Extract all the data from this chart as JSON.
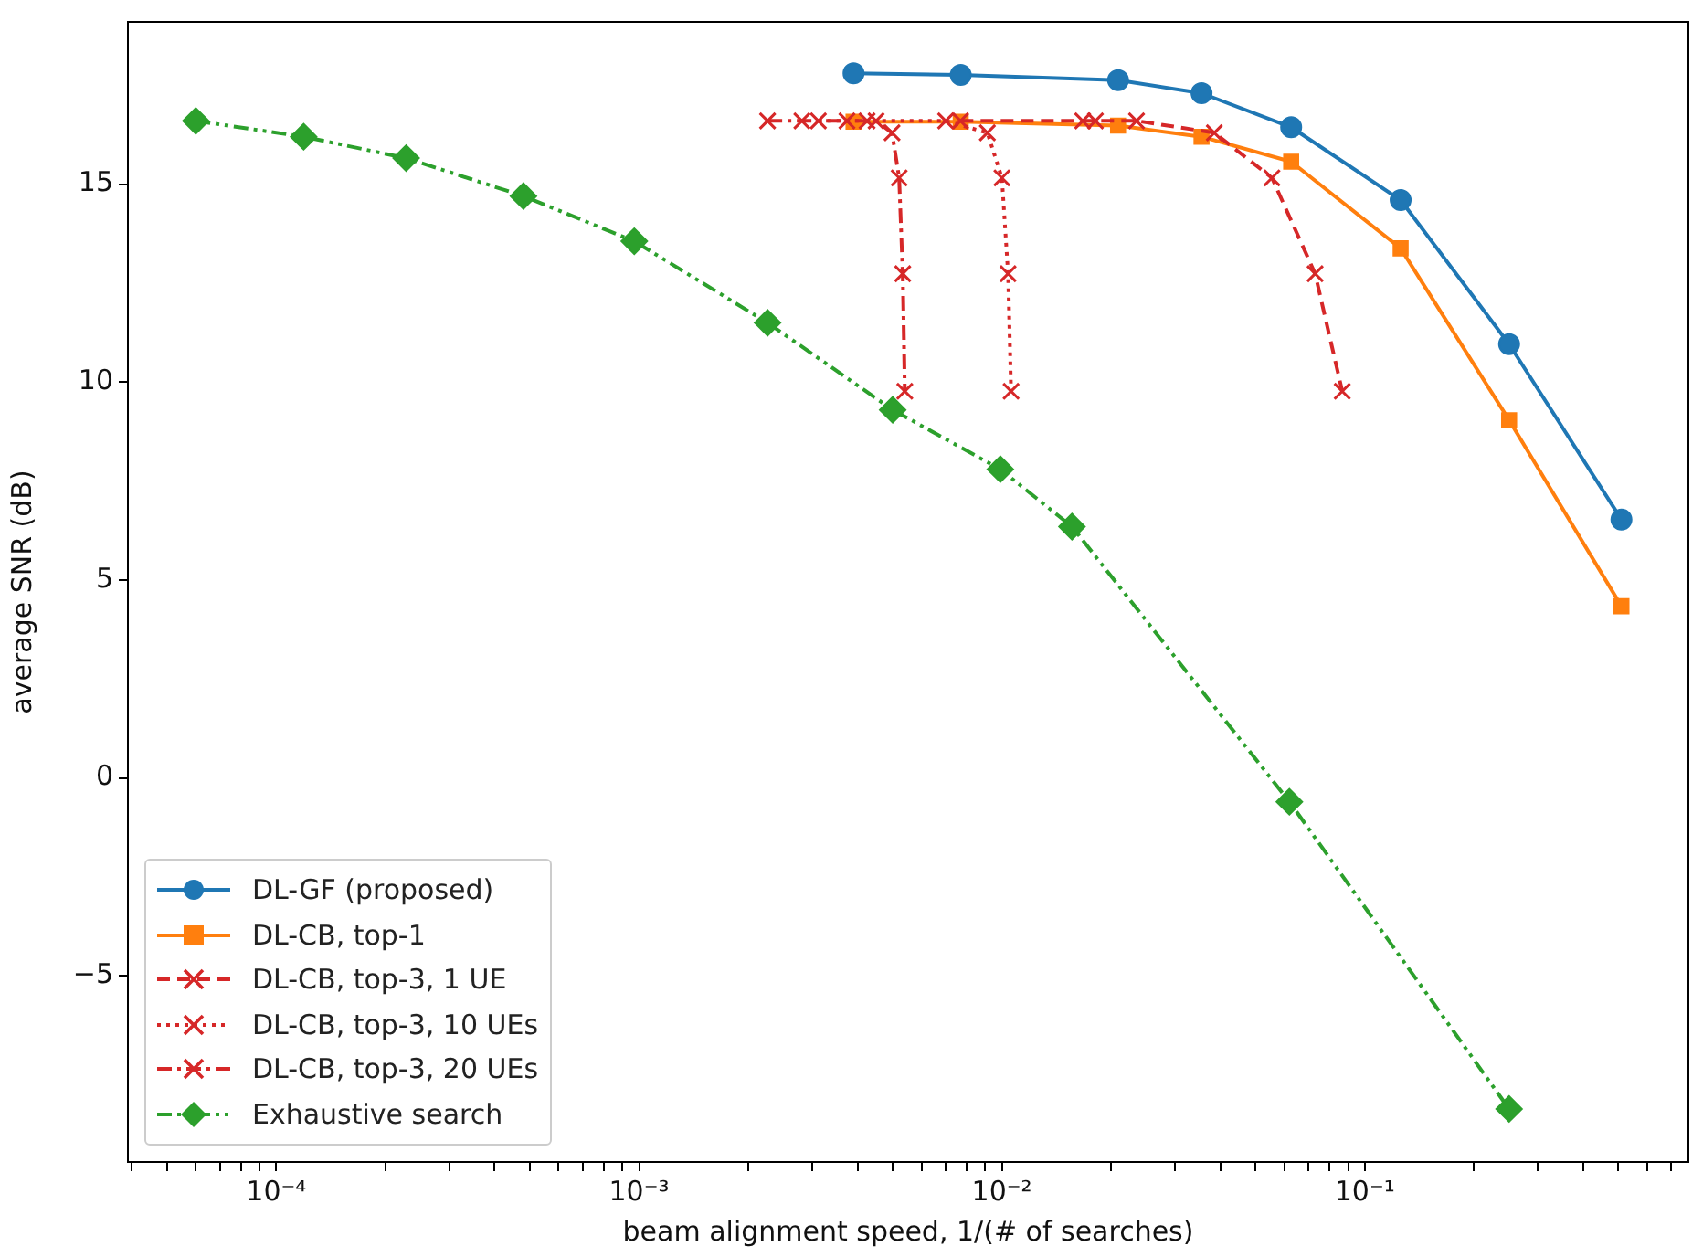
{
  "chart_data": {
    "type": "line",
    "xlabel": "beam alignment speed, 1/(# of searches)",
    "ylabel": "average SNR (dB)",
    "log": "x",
    "xlim": [
      3.9e-05,
      0.78
    ],
    "ylim": [
      -9.7,
      19.1
    ],
    "xticks": [
      {
        "value": 4e-05,
        "label": null
      },
      {
        "value": 5e-05,
        "label": null
      },
      {
        "value": 6e-05,
        "label": null
      },
      {
        "value": 7e-05,
        "label": null
      },
      {
        "value": 8e-05,
        "label": null
      },
      {
        "value": 9e-05,
        "label": null
      },
      {
        "value": 0.0001,
        "label": "10⁻⁴"
      },
      {
        "value": 0.0002,
        "label": null
      },
      {
        "value": 0.0003,
        "label": null
      },
      {
        "value": 0.0004,
        "label": null
      },
      {
        "value": 0.0005,
        "label": null
      },
      {
        "value": 0.0006,
        "label": null
      },
      {
        "value": 0.0007,
        "label": null
      },
      {
        "value": 0.0008,
        "label": null
      },
      {
        "value": 0.0009,
        "label": null
      },
      {
        "value": 0.001,
        "label": "10⁻³"
      },
      {
        "value": 0.002,
        "label": null
      },
      {
        "value": 0.003,
        "label": null
      },
      {
        "value": 0.004,
        "label": null
      },
      {
        "value": 0.005,
        "label": null
      },
      {
        "value": 0.006,
        "label": null
      },
      {
        "value": 0.007,
        "label": null
      },
      {
        "value": 0.008,
        "label": null
      },
      {
        "value": 0.009,
        "label": null
      },
      {
        "value": 0.01,
        "label": "10⁻²"
      },
      {
        "value": 0.02,
        "label": null
      },
      {
        "value": 0.03,
        "label": null
      },
      {
        "value": 0.04,
        "label": null
      },
      {
        "value": 0.05,
        "label": null
      },
      {
        "value": 0.06,
        "label": null
      },
      {
        "value": 0.07,
        "label": null
      },
      {
        "value": 0.08,
        "label": null
      },
      {
        "value": 0.09,
        "label": null
      },
      {
        "value": 0.1,
        "label": "10⁻¹"
      },
      {
        "value": 0.2,
        "label": null
      },
      {
        "value": 0.3,
        "label": null
      },
      {
        "value": 0.4,
        "label": null
      },
      {
        "value": 0.5,
        "label": null
      },
      {
        "value": 0.6,
        "label": null
      },
      {
        "value": 0.7,
        "label": null
      }
    ],
    "yticks": [
      {
        "value": -5,
        "label": "−5"
      },
      0,
      5,
      10,
      15
    ],
    "grid": false,
    "legend": "bottom left",
    "series": [
      {
        "name": "DL-GF (proposed)",
        "color": "#1f77b4",
        "marker": "circle",
        "line_style": "solid",
        "x": [
          0.0039,
          0.0077,
          0.0209,
          0.0355,
          0.0627,
          0.1256,
          0.25,
          0.51
        ],
        "values": [
          17.8,
          17.76,
          17.63,
          17.3,
          16.44,
          14.6,
          10.96,
          6.53
        ]
      },
      {
        "name": "DL-CB, top-1",
        "color": "#ff7f0e",
        "marker": "square",
        "line_style": "solid",
        "x": [
          0.0039,
          0.0077,
          0.0209,
          0.0355,
          0.0627,
          0.1256,
          0.25,
          0.51
        ],
        "values": [
          16.58,
          16.58,
          16.48,
          16.2,
          15.57,
          13.38,
          9.04,
          4.34
        ]
      },
      {
        "name": "DL-CB, top-3, 1 UE",
        "color": "#d62728",
        "marker": "cross",
        "line_style": "dashed",
        "x": [
          0.00769,
          0.0167,
          0.0181,
          0.0235,
          0.0385,
          0.0555,
          0.073,
          0.0867
        ],
        "values": [
          16.6,
          16.6,
          16.6,
          16.6,
          16.3,
          15.16,
          12.74,
          9.77
        ]
      },
      {
        "name": "DL-CB, top-3, 10 UEs",
        "color": "#d62728",
        "marker": "cross",
        "line_style": "dotted",
        "x": [
          0.00312,
          0.00425,
          0.007,
          0.00912,
          0.01,
          0.0104,
          0.0106
        ],
        "values": [
          16.6,
          16.6,
          16.6,
          16.3,
          15.16,
          12.74,
          9.77
        ]
      },
      {
        "name": "DL-CB, top-3, 20 UEs",
        "color": "#d62728",
        "marker": "cross",
        "line_style": "dashdot",
        "x": [
          0.00226,
          0.00281,
          0.00374,
          0.0045,
          0.00498,
          0.00521,
          0.00533,
          0.0054
        ],
        "values": [
          16.6,
          16.6,
          16.6,
          16.6,
          16.3,
          15.16,
          12.74,
          9.77
        ]
      },
      {
        "name": "Exhaustive search",
        "color": "#2ca02c",
        "marker": "diamond",
        "line_style": "dashdotdot",
        "x": [
          6e-05,
          0.000119,
          0.000228,
          0.00048,
          0.00097,
          0.00226,
          0.005,
          0.0099,
          0.0156,
          0.062,
          0.25
        ],
        "values": [
          16.6,
          16.2,
          15.66,
          14.7,
          13.56,
          11.5,
          9.3,
          7.8,
          6.35,
          -0.6,
          -8.36
        ]
      }
    ]
  }
}
